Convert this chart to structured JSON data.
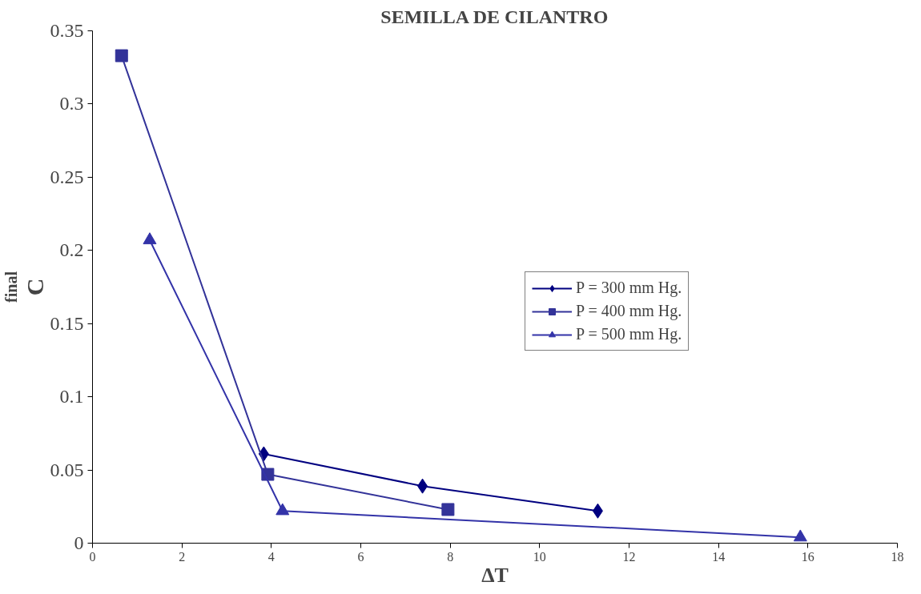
{
  "chart_data": {
    "type": "line",
    "title": "SEMILLA DE CILANTRO",
    "xlabel": "ΔT",
    "ylabel": "C$_{final}$",
    "xlim": [
      0,
      18
    ],
    "xticks": [
      0,
      2,
      4,
      6,
      8,
      10,
      12,
      14,
      16,
      18
    ],
    "ylim": [
      0,
      0.35
    ],
    "yticks": [
      0,
      0.05,
      0.1,
      0.15,
      0.2,
      0.25,
      0.3,
      0.35
    ],
    "grid": false,
    "legend": "right",
    "series": [
      {
        "name": "P = 300 mm Hg.",
        "color": "#000080",
        "marker": "diamond",
        "x": [
          3.83,
          7.38,
          11.3
        ],
        "values": [
          0.061,
          0.039,
          0.022
        ]
      },
      {
        "name": "P = 400 mm Hg.",
        "color": "#333399",
        "marker": "square",
        "x": [
          0.65,
          3.92,
          7.95
        ],
        "values": [
          0.333,
          0.047,
          0.023
        ]
      },
      {
        "name": "P = 500 mm Hg.",
        "color": "#3333a8",
        "marker": "triangle",
        "x": [
          1.28,
          4.25,
          15.83
        ],
        "values": [
          0.207,
          0.022,
          0.004
        ]
      }
    ]
  }
}
